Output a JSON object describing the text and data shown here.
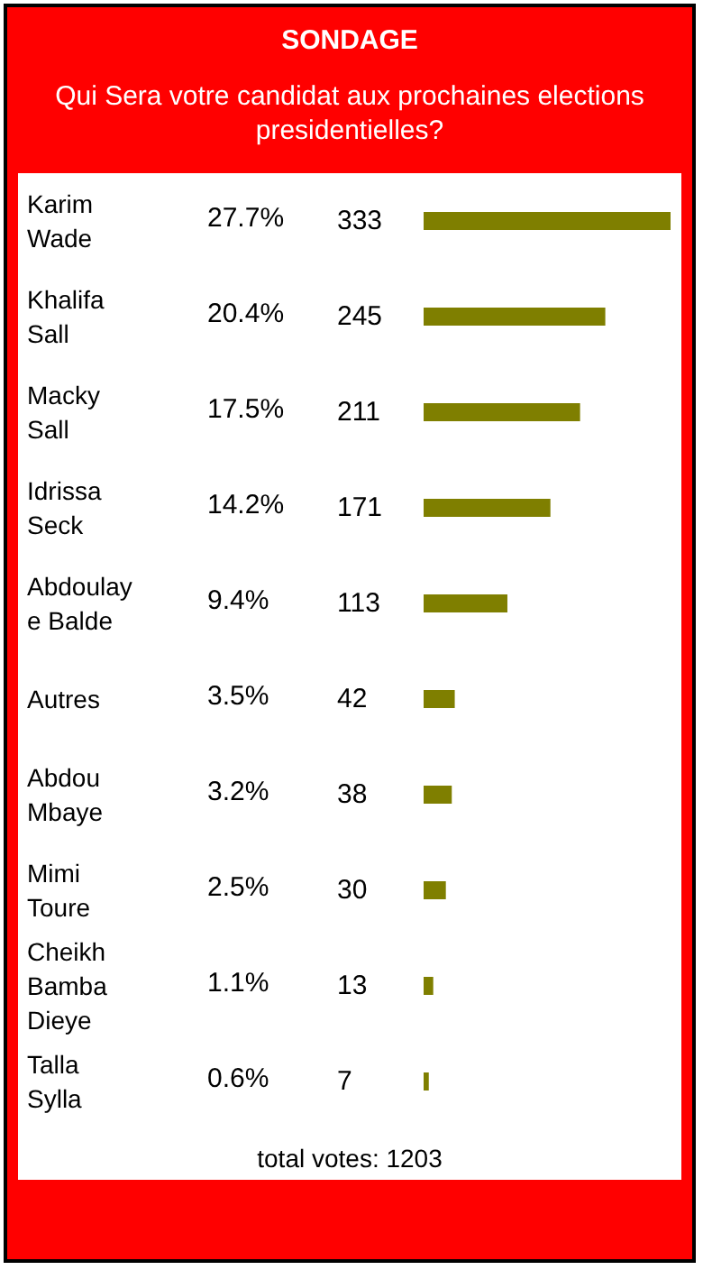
{
  "chart_data": {
    "type": "bar",
    "orientation": "horizontal",
    "title": "SONDAGE",
    "subtitle": "Qui Sera votre candidat aux prochaines elections presidentielles?",
    "categories": [
      "Karim Wade",
      "Khalifa Sall",
      "Macky Sall",
      "Idrissa Seck",
      "Abdoulaye Balde",
      "Autres",
      "Abdou Mbaye",
      "Mimi Toure",
      "Cheikh Bamba Dieye",
      "Talla Sylla"
    ],
    "values": [
      333,
      245,
      211,
      171,
      113,
      42,
      38,
      30,
      13,
      7
    ],
    "color": "#7f7f00",
    "data_labels": true,
    "annotations": [
      "27.7%",
      "20.4%",
      "17.5%",
      "14.2%",
      "9.4%",
      "3.5%",
      "3.2%",
      "2.5%",
      "1.1%",
      "0.6%",
      "total votes: 1203"
    ]
  }
}
